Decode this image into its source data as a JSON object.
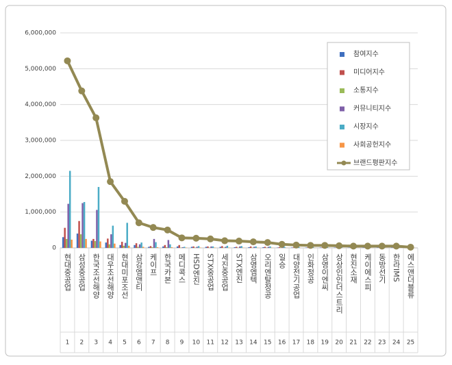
{
  "chart_data": {
    "type": "bar",
    "categories": [
      "현대중공업",
      "삼성중공업",
      "한국조선해양",
      "대우조선해양",
      "현대미포조선",
      "삼강엠앤티",
      "케이프",
      "한국카본",
      "메디콕스",
      "HSD엔진",
      "STX중공업",
      "세진중공업",
      "STX엔진",
      "삼영엠텍",
      "오리엔탈정공",
      "일승",
      "대양전기공업",
      "인화정공",
      "삼영이엔씨",
      "상상인인더스트리",
      "현진소재",
      "케이에스피",
      "동방선기",
      "한라IMS",
      "에스앤더블류"
    ],
    "category_numbers": [
      "1",
      "2",
      "3",
      "4",
      "5",
      "6",
      "7",
      "8",
      "9",
      "10",
      "11",
      "12",
      "13",
      "14",
      "15",
      "16",
      "17",
      "18",
      "19",
      "20",
      "21",
      "22",
      "23",
      "24",
      "25"
    ],
    "series": [
      {
        "name": "참여지수",
        "color": "#3f6fbf",
        "values": [
          300000,
          400000,
          200000,
          150000,
          80000,
          80000,
          30000,
          40000,
          40000,
          30000,
          30000,
          30000,
          20000,
          20000,
          20000,
          10000,
          10000,
          10000,
          10000,
          10000,
          8000,
          8000,
          8000,
          8000,
          4000
        ]
      },
      {
        "name": "미디어지수",
        "color": "#c0504d",
        "values": [
          560000,
          750000,
          250000,
          260000,
          170000,
          130000,
          50000,
          80000,
          80000,
          40000,
          40000,
          50000,
          30000,
          40000,
          30000,
          20000,
          15000,
          15000,
          12000,
          12000,
          10000,
          10000,
          10000,
          10000,
          5000
        ]
      },
      {
        "name": "소통지수",
        "color": "#9bbb59",
        "values": [
          250000,
          380000,
          190000,
          100000,
          60000,
          30000,
          20000,
          20000,
          10000,
          10000,
          10000,
          10000,
          8000,
          8000,
          8000,
          6000,
          5000,
          5000,
          5000,
          5000,
          4000,
          4000,
          4000,
          4000,
          2000
        ]
      },
      {
        "name": "커뮤니티지수",
        "color": "#7f60a8",
        "values": [
          1230000,
          1250000,
          1060000,
          380000,
          140000,
          100000,
          250000,
          220000,
          20000,
          30000,
          40000,
          30000,
          40000,
          30000,
          30000,
          20000,
          15000,
          15000,
          15000,
          12000,
          10000,
          10000,
          10000,
          10000,
          5000
        ]
      },
      {
        "name": "시장지수",
        "color": "#4bacc6",
        "values": [
          2150000,
          1280000,
          1700000,
          620000,
          700000,
          150000,
          160000,
          100000,
          30000,
          50000,
          40000,
          60000,
          50000,
          40000,
          40000,
          30000,
          25000,
          20000,
          20000,
          20000,
          15000,
          15000,
          15000,
          15000,
          6000
        ]
      },
      {
        "name": "사회공헌지수",
        "color": "#f79646",
        "values": [
          230000,
          250000,
          180000,
          120000,
          60000,
          30000,
          20000,
          20000,
          10000,
          10000,
          10000,
          10000,
          8000,
          8000,
          8000,
          6000,
          5000,
          5000,
          5000,
          5000,
          4000,
          4000,
          4000,
          4000,
          2000
        ]
      },
      {
        "name": "브랜드평판지수",
        "color": "#938953",
        "type": "line",
        "values": [
          5220000,
          4380000,
          3630000,
          1850000,
          1300000,
          700000,
          570000,
          500000,
          280000,
          270000,
          250000,
          200000,
          190000,
          170000,
          150000,
          100000,
          80000,
          70000,
          70000,
          60000,
          50000,
          50000,
          50000,
          50000,
          20000
        ]
      }
    ],
    "ylim": [
      0,
      6000000
    ],
    "yticks": [
      0,
      {
        "value": 1000000,
        "label": "1,000,000"
      },
      {
        "value": 2000000,
        "label": "2,000,000"
      },
      {
        "value": 3000000,
        "label": "3,000,000"
      },
      {
        "value": 4000000,
        "label": "4,000,000"
      },
      {
        "value": 5000000,
        "label": "5,000,000"
      },
      {
        "value": 6000000,
        "label": "6,000,000"
      }
    ],
    "legend": "top-right"
  }
}
